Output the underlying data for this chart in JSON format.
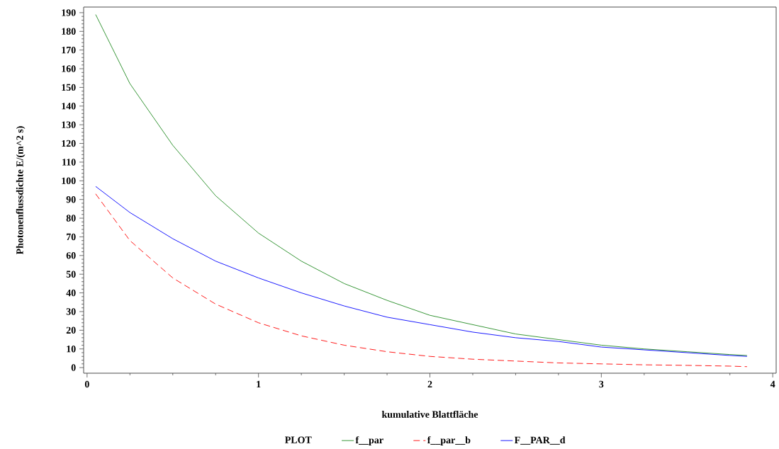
{
  "chart_data": {
    "type": "line",
    "xlabel": "kumulative Blattfläche",
    "ylabel": "Photonenflussdichte    E/(m^2 s)",
    "legend_title": "PLOT",
    "legend": "bottom",
    "grid": false,
    "marker": "none",
    "xlim": [
      -0.02,
      4.02
    ],
    "xticks": [
      0,
      1,
      2,
      3,
      4
    ],
    "ylim": [
      -3,
      193
    ],
    "yticks": [
      0,
      10,
      20,
      30,
      40,
      50,
      60,
      70,
      80,
      90,
      100,
      110,
      120,
      130,
      140,
      150,
      160,
      170,
      180,
      190
    ],
    "x": [
      0.05,
      0.25,
      0.5,
      0.75,
      1.0,
      1.25,
      1.5,
      1.75,
      2.0,
      2.25,
      2.5,
      2.75,
      3.0,
      3.25,
      3.5,
      3.75,
      3.85
    ],
    "series": [
      {
        "name": "f__par",
        "color": "#228b22",
        "line_style": "solid",
        "values": [
          189,
          152,
          119,
          92,
          72,
          57,
          45,
          36,
          28,
          23,
          18,
          15,
          12,
          10,
          8.5,
          7,
          6.5
        ]
      },
      {
        "name": "f__par__b",
        "color": "#ff0000",
        "line_style": "dashed",
        "values": [
          93,
          68,
          48,
          34,
          24,
          17,
          12,
          8.5,
          6,
          4.5,
          3.5,
          2.5,
          2,
          1.5,
          1.2,
          0.8,
          0.5
        ]
      },
      {
        "name": "F__PAR__d",
        "color": "#0000ff",
        "line_style": "solid",
        "values": [
          97,
          83,
          69,
          57,
          48,
          40,
          33,
          27,
          23,
          19,
          16,
          14,
          11,
          9.5,
          8,
          6.5,
          6
        ]
      }
    ]
  }
}
